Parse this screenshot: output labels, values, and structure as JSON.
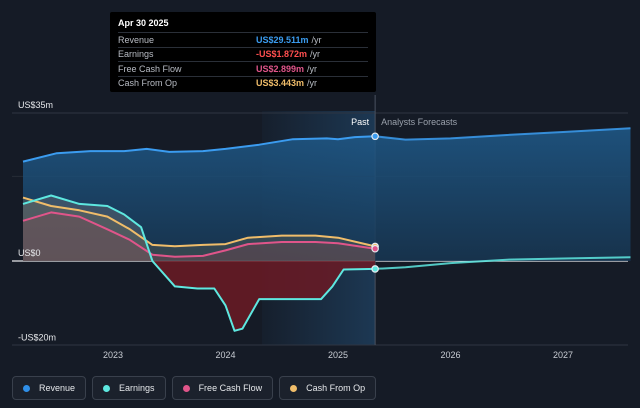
{
  "tooltip": {
    "date": "Apr 30 2025",
    "rows": [
      {
        "label": "Revenue",
        "value": "US$29.511m",
        "unit": "/yr",
        "color": "#3b9cf0"
      },
      {
        "label": "Earnings",
        "value": "-US$1.872m",
        "unit": "/yr",
        "color": "#ff4f4f"
      },
      {
        "label": "Free Cash Flow",
        "value": "US$2.899m",
        "unit": "/yr",
        "color": "#e0558a"
      },
      {
        "label": "Cash From Op",
        "value": "US$3.443m",
        "unit": "/yr",
        "color": "#f0bd6a"
      }
    ]
  },
  "legend": [
    {
      "label": "Revenue",
      "color": "#2f8fe8"
    },
    {
      "label": "Earnings",
      "color": "#5ee8e0"
    },
    {
      "label": "Free Cash Flow",
      "color": "#e0558a"
    },
    {
      "label": "Cash From Op",
      "color": "#f0bd6a"
    }
  ],
  "chart_data": {
    "type": "area",
    "x_ticks": [
      "2023",
      "2024",
      "2025",
      "2026",
      "2027"
    ],
    "y_ticks": [
      "US$35m",
      "US$0",
      "-US$20m"
    ],
    "ylim": [
      -20,
      35
    ],
    "past_label": "Past",
    "forecast_label": "Analysts Forecasts",
    "divider_date": 2025.33,
    "series": [
      {
        "name": "Revenue",
        "color": "#3b9cf0",
        "points": [
          [
            2022.2,
            23.5
          ],
          [
            2022.5,
            25.5
          ],
          [
            2022.8,
            26.0
          ],
          [
            2023.1,
            26.0
          ],
          [
            2023.3,
            26.5
          ],
          [
            2023.5,
            25.8
          ],
          [
            2023.8,
            26.0
          ],
          [
            2024.0,
            26.5
          ],
          [
            2024.3,
            27.5
          ],
          [
            2024.6,
            28.8
          ],
          [
            2024.9,
            29.0
          ],
          [
            2025.0,
            28.8
          ],
          [
            2025.15,
            29.3
          ],
          [
            2025.33,
            29.5
          ]
        ],
        "forecast": [
          [
            2025.33,
            29.5
          ],
          [
            2025.6,
            28.7
          ],
          [
            2026.0,
            29.0
          ],
          [
            2026.5,
            29.8
          ],
          [
            2027.0,
            30.5
          ],
          [
            2027.6,
            31.4
          ]
        ]
      },
      {
        "name": "Earnings",
        "color": "#5ee8e0",
        "points": [
          [
            2022.2,
            13.5
          ],
          [
            2022.45,
            15.5
          ],
          [
            2022.7,
            13.5
          ],
          [
            2022.95,
            13.0
          ],
          [
            2023.1,
            11.0
          ],
          [
            2023.25,
            8.0
          ],
          [
            2023.35,
            0.0
          ],
          [
            2023.55,
            -6.0
          ],
          [
            2023.75,
            -6.5
          ],
          [
            2023.9,
            -6.5
          ],
          [
            2024.0,
            -10.5
          ],
          [
            2024.08,
            -16.5
          ],
          [
            2024.15,
            -16.0
          ],
          [
            2024.3,
            -9.0
          ],
          [
            2024.6,
            -9.0
          ],
          [
            2024.85,
            -9.0
          ],
          [
            2024.95,
            -6.0
          ],
          [
            2025.05,
            -2.0
          ],
          [
            2025.33,
            -1.872
          ]
        ],
        "forecast": [
          [
            2025.33,
            -1.872
          ],
          [
            2025.6,
            -1.5
          ],
          [
            2026.0,
            -0.5
          ],
          [
            2026.5,
            0.3
          ],
          [
            2027.0,
            0.6
          ],
          [
            2027.6,
            0.9
          ]
        ]
      },
      {
        "name": "Free Cash Flow",
        "color": "#e0558a",
        "points": [
          [
            2022.2,
            9.5
          ],
          [
            2022.45,
            11.5
          ],
          [
            2022.7,
            10.5
          ],
          [
            2022.95,
            7.5
          ],
          [
            2023.15,
            5.0
          ],
          [
            2023.35,
            1.5
          ],
          [
            2023.55,
            1.0
          ],
          [
            2023.8,
            1.2
          ],
          [
            2024.0,
            2.5
          ],
          [
            2024.2,
            4.0
          ],
          [
            2024.5,
            4.5
          ],
          [
            2024.8,
            4.5
          ],
          [
            2025.0,
            4.2
          ],
          [
            2025.33,
            2.899
          ]
        ],
        "forecast": []
      },
      {
        "name": "Cash From Op",
        "color": "#f0bd6a",
        "points": [
          [
            2022.2,
            15.0
          ],
          [
            2022.45,
            13.0
          ],
          [
            2022.7,
            12.0
          ],
          [
            2022.95,
            10.5
          ],
          [
            2023.15,
            7.5
          ],
          [
            2023.35,
            3.8
          ],
          [
            2023.55,
            3.5
          ],
          [
            2023.8,
            3.8
          ],
          [
            2024.0,
            4.0
          ],
          [
            2024.2,
            5.5
          ],
          [
            2024.5,
            6.0
          ],
          [
            2024.8,
            6.0
          ],
          [
            2025.0,
            5.5
          ],
          [
            2025.33,
            3.443
          ]
        ],
        "forecast": []
      }
    ]
  }
}
